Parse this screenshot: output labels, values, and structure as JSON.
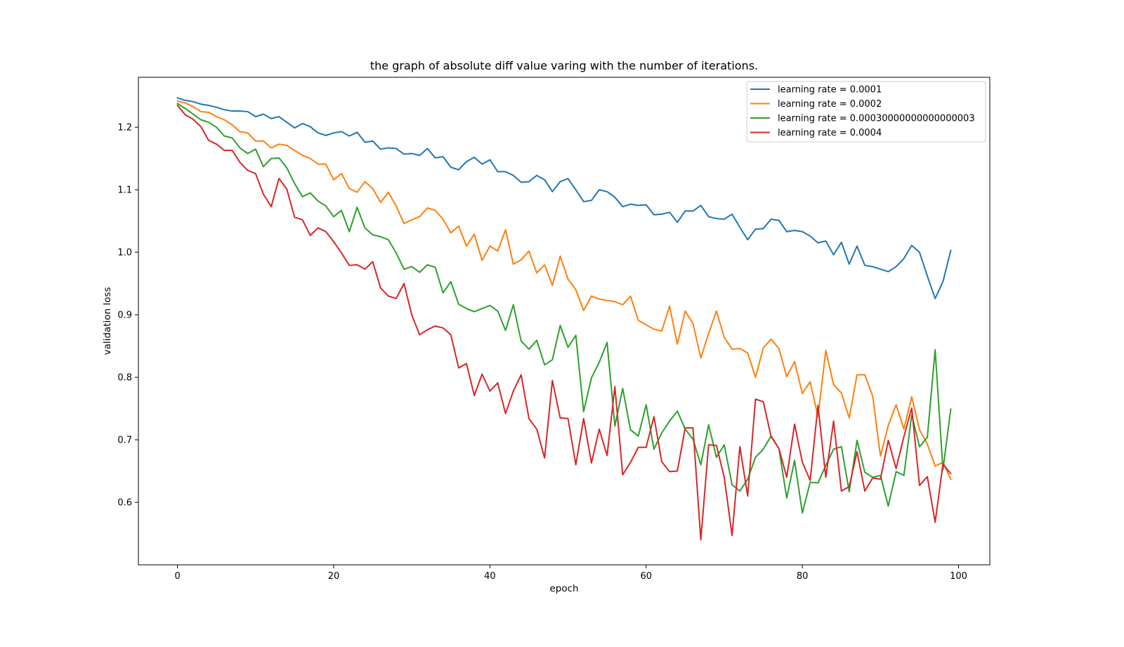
{
  "chart_data": {
    "type": "line",
    "title": "the graph of absolute diff value varing with the number of iterations.",
    "xlabel": "epoch",
    "ylabel": "validation loss",
    "xlim": [
      -5,
      104
    ],
    "ylim": [
      0.5,
      1.28
    ],
    "xticks": [
      0,
      20,
      40,
      60,
      80,
      100
    ],
    "xtick_labels": [
      "0",
      "20",
      "40",
      "60",
      "80",
      "100"
    ],
    "yticks": [
      0.6,
      0.7,
      0.8,
      0.9,
      1.0,
      1.1,
      1.2
    ],
    "ytick_labels": [
      "0.6",
      "0.7",
      "0.8",
      "0.9",
      "1.0",
      "1.1",
      "1.2"
    ],
    "grid": false,
    "legend_position": "upper-right",
    "x": [
      0,
      1,
      2,
      3,
      4,
      5,
      6,
      7,
      8,
      9,
      10,
      11,
      12,
      13,
      14,
      15,
      16,
      17,
      18,
      19,
      20,
      21,
      22,
      23,
      24,
      25,
      26,
      27,
      28,
      29,
      30,
      31,
      32,
      33,
      34,
      35,
      36,
      37,
      38,
      39,
      40,
      41,
      42,
      43,
      44,
      45,
      46,
      47,
      48,
      49,
      50,
      51,
      52,
      53,
      54,
      55,
      56,
      57,
      58,
      59,
      60,
      61,
      62,
      63,
      64,
      65,
      66,
      67,
      68,
      69,
      70,
      71,
      72,
      73,
      74,
      75,
      76,
      77,
      78,
      79,
      80,
      81,
      82,
      83,
      84,
      85,
      86,
      87,
      88,
      89,
      90,
      91,
      92,
      93,
      94,
      95,
      96,
      97,
      98,
      99
    ],
    "series": [
      {
        "name": "learning rate = 0.0001",
        "color": "#1f77b4",
        "values": [
          1.247,
          1.243,
          1.241,
          1.237,
          1.235,
          1.232,
          1.228,
          1.226,
          1.226,
          1.225,
          1.217,
          1.221,
          1.214,
          1.217,
          1.208,
          1.199,
          1.206,
          1.201,
          1.191,
          1.187,
          1.191,
          1.193,
          1.186,
          1.192,
          1.176,
          1.178,
          1.165,
          1.167,
          1.166,
          1.157,
          1.158,
          1.155,
          1.166,
          1.151,
          1.153,
          1.136,
          1.132,
          1.145,
          1.152,
          1.141,
          1.148,
          1.129,
          1.129,
          1.123,
          1.112,
          1.113,
          1.123,
          1.116,
          1.097,
          1.113,
          1.118,
          1.1,
          1.081,
          1.083,
          1.1,
          1.097,
          1.088,
          1.073,
          1.077,
          1.075,
          1.076,
          1.06,
          1.061,
          1.064,
          1.048,
          1.066,
          1.066,
          1.075,
          1.057,
          1.054,
          1.053,
          1.061,
          1.04,
          1.02,
          1.037,
          1.038,
          1.053,
          1.051,
          1.033,
          1.035,
          1.033,
          1.026,
          1.015,
          1.018,
          0.996,
          1.016,
          0.981,
          1.01,
          0.979,
          0.977,
          0.973,
          0.969,
          0.977,
          0.99,
          1.011,
          1.0,
          0.962,
          0.926,
          0.953,
          1.003
        ]
      },
      {
        "name": "learning rate = 0.0002",
        "color": "#ff7f0e",
        "values": [
          1.242,
          1.239,
          1.233,
          1.225,
          1.224,
          1.217,
          1.212,
          1.204,
          1.193,
          1.191,
          1.178,
          1.178,
          1.167,
          1.173,
          1.171,
          1.163,
          1.155,
          1.15,
          1.141,
          1.141,
          1.116,
          1.126,
          1.102,
          1.096,
          1.113,
          1.102,
          1.08,
          1.096,
          1.074,
          1.046,
          1.052,
          1.057,
          1.071,
          1.067,
          1.053,
          1.031,
          1.042,
          1.01,
          1.029,
          0.987,
          1.01,
          1.002,
          1.036,
          0.981,
          0.988,
          1.002,
          0.967,
          0.98,
          0.947,
          0.994,
          0.957,
          0.94,
          0.907,
          0.93,
          0.925,
          0.923,
          0.921,
          0.916,
          0.93,
          0.891,
          0.884,
          0.877,
          0.874,
          0.914,
          0.853,
          0.906,
          0.886,
          0.831,
          0.87,
          0.906,
          0.864,
          0.845,
          0.846,
          0.839,
          0.8,
          0.847,
          0.861,
          0.846,
          0.801,
          0.825,
          0.774,
          0.793,
          0.737,
          0.843,
          0.788,
          0.775,
          0.735,
          0.804,
          0.804,
          0.77,
          0.674,
          0.723,
          0.756,
          0.717,
          0.769,
          0.716,
          0.693,
          0.658,
          0.664,
          0.637
        ]
      },
      {
        "name": "learning rate = 0.00030000000000000003",
        "color": "#2ca02c",
        "values": [
          1.238,
          1.23,
          1.221,
          1.212,
          1.208,
          1.2,
          1.186,
          1.183,
          1.167,
          1.158,
          1.165,
          1.137,
          1.15,
          1.151,
          1.135,
          1.11,
          1.089,
          1.095,
          1.082,
          1.074,
          1.057,
          1.067,
          1.033,
          1.072,
          1.039,
          1.028,
          1.025,
          1.02,
          0.999,
          0.973,
          0.977,
          0.968,
          0.98,
          0.976,
          0.935,
          0.953,
          0.917,
          0.91,
          0.905,
          0.91,
          0.915,
          0.906,
          0.875,
          0.916,
          0.858,
          0.845,
          0.859,
          0.82,
          0.828,
          0.883,
          0.848,
          0.867,
          0.745,
          0.799,
          0.824,
          0.856,
          0.722,
          0.782,
          0.716,
          0.706,
          0.756,
          0.685,
          0.711,
          0.73,
          0.746,
          0.717,
          0.701,
          0.66,
          0.724,
          0.672,
          0.692,
          0.628,
          0.618,
          0.637,
          0.672,
          0.685,
          0.706,
          0.686,
          0.607,
          0.667,
          0.583,
          0.632,
          0.631,
          0.659,
          0.685,
          0.689,
          0.617,
          0.699,
          0.648,
          0.64,
          0.643,
          0.594,
          0.649,
          0.643,
          0.74,
          0.689,
          0.704,
          0.844,
          0.652,
          0.749
        ]
      },
      {
        "name": "learning rate = 0.0004",
        "color": "#d62728",
        "values": [
          1.235,
          1.22,
          1.213,
          1.201,
          1.179,
          1.173,
          1.163,
          1.163,
          1.144,
          1.131,
          1.126,
          1.093,
          1.073,
          1.118,
          1.101,
          1.056,
          1.052,
          1.027,
          1.039,
          1.033,
          1.017,
          0.999,
          0.979,
          0.98,
          0.973,
          0.985,
          0.943,
          0.93,
          0.926,
          0.95,
          0.9,
          0.868,
          0.876,
          0.882,
          0.879,
          0.868,
          0.815,
          0.822,
          0.771,
          0.805,
          0.778,
          0.791,
          0.742,
          0.778,
          0.804,
          0.734,
          0.717,
          0.671,
          0.795,
          0.735,
          0.734,
          0.66,
          0.734,
          0.663,
          0.717,
          0.675,
          0.785,
          0.644,
          0.664,
          0.688,
          0.688,
          0.737,
          0.665,
          0.649,
          0.65,
          0.719,
          0.719,
          0.54,
          0.692,
          0.691,
          0.64,
          0.547,
          0.689,
          0.61,
          0.765,
          0.761,
          0.705,
          0.686,
          0.64,
          0.725,
          0.664,
          0.635,
          0.755,
          0.64,
          0.73,
          0.618,
          0.625,
          0.681,
          0.618,
          0.639,
          0.637,
          0.699,
          0.654,
          0.705,
          0.751,
          0.627,
          0.641,
          0.568,
          0.661,
          0.646
        ]
      }
    ]
  }
}
